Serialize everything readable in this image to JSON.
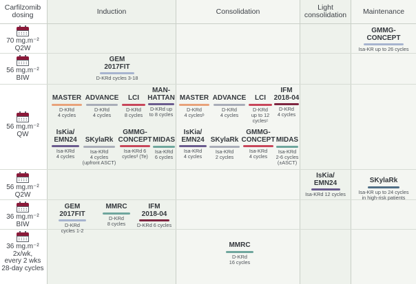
{
  "headers": {
    "dosing": "Carfilzomib dosing",
    "induction": "Induction",
    "consolidation": "Consolidation",
    "light_consolidation": "Light consolidation",
    "maintenance": "Maintenance"
  },
  "colors": {
    "orange": "#e8a27a",
    "gray": "#a9adb8",
    "red": "#c8465a",
    "purple": "#6a5b8e",
    "darkred": "#7e2540",
    "teal": "#6fa69d",
    "lightblue": "#a7b4cf",
    "column_bg": "#eef2ec",
    "calendar": "#8b1a3a"
  },
  "doses": {
    "d1": {
      "l1": "70 mg.m⁻²",
      "l2": "Q2W"
    },
    "d2": {
      "l1": "56 mg.m⁻²",
      "l2": "BIW"
    },
    "d3": {
      "l1": "56 mg.m⁻²",
      "l2": "QW"
    },
    "d4": {
      "l1": "56 mg.m⁻²",
      "l2": "Q2W"
    },
    "d5": {
      "l1": "36 mg.m⁻²",
      "l2": "BIW"
    },
    "d6": {
      "l1": "36 mg.m⁻²",
      "l2": "2x/wk,",
      "l3": "every 2 wks",
      "l4": "28-day cycles"
    }
  },
  "trials": {
    "gmmg_maint": {
      "n1": "GMMG-",
      "n2": "CONCEPT",
      "d1": "Isa-KR up to 26 cycles"
    },
    "gem_biw": {
      "n1": "GEM",
      "n2": "2017FIT",
      "d1": "D-KRd cycles 3-18"
    },
    "ind_master": {
      "n1": "MASTER",
      "d1": "D-KRd",
      "d2": "4 cycles"
    },
    "ind_advance": {
      "n1": "ADVANCE",
      "d1": "D-KRd",
      "d2": "4 cycles"
    },
    "ind_lci": {
      "n1": "LCI",
      "d1": "D-KRd",
      "d2": "8 cycles"
    },
    "ind_manhattan": {
      "n1": "MAN-",
      "n2": "HATTAN",
      "d1": "D-KRd up",
      "d2": "to 8 cycles"
    },
    "con_master": {
      "n1": "MASTER",
      "d1": "D-KRd",
      "d2": "4 cyclesᵇ"
    },
    "con_advance": {
      "n1": "ADVANCE",
      "d1": "D-KRd",
      "d2": "4 cycles"
    },
    "con_lci": {
      "n1": "LCI",
      "d1": "D-KRd",
      "d2": "up to 12",
      "d3": "cyclesᶜ"
    },
    "con_ifm": {
      "n1": "IFM",
      "n2": "2018-04",
      "d1": "D-KRd",
      "d2": "4 cycles"
    },
    "ind_iskia": {
      "n1": "IsKia/",
      "n2": "EMN24",
      "d1": "Isa-KRd",
      "d2": "4 cycles"
    },
    "ind_skylark": {
      "n1": "SKylaRk",
      "d1": "Isa-KRd",
      "d2": "4 cycles",
      "d3": "(upfront ASCT)"
    },
    "ind_gmmg": {
      "n1": "GMMG-",
      "n2": "CONCEPT",
      "d1": "Isa-KRd 6",
      "d2": "cyclesᵈ (Te)"
    },
    "ind_midas": {
      "n1": "MIDAS",
      "d1": "Isa-KRd",
      "d2": "6 cycles"
    },
    "con_iskia": {
      "n1": "IsKia/",
      "n2": "EMN24",
      "d1": "Isa-KRd",
      "d2": "4 cycles"
    },
    "con_skylark": {
      "n1": "SKylaRk",
      "d1": "Isa-KRd",
      "d2": "2 cycles"
    },
    "con_gmmg": {
      "n1": "GMMG-",
      "n2": "CONCEPT",
      "d1": "Isa-KRd",
      "d2": "4 cycles"
    },
    "con_midas": {
      "n1": "MIDAS",
      "d1": "Isa-KRd",
      "d2": "2-6 cycles",
      "d3": "(±ASCT)"
    },
    "light_iskia": {
      "n1": "IsKia/",
      "n2": "EMN24",
      "d1": "Isa-KRd 12 cycles"
    },
    "maint_skylark": {
      "n1": "SKylaRk",
      "d1": "Isa-KR up to 24 cycles",
      "d2": "in high-risk patients"
    },
    "gem_36": {
      "n1": "GEM",
      "n2": "2017FIT",
      "d1": "D-KRd",
      "d2": "cycles 1-2"
    },
    "mmrc_36": {
      "n1": "MMRC",
      "d1": "D-KRd",
      "d2": "8 cycles"
    },
    "ifm_36": {
      "n1": "IFM",
      "n2": "2018-04",
      "d1": "D-KRd 6 cycles"
    },
    "mmrc_con": {
      "n1": "MMRC",
      "d1": "D-KRd",
      "d2": "16 cycles"
    }
  }
}
